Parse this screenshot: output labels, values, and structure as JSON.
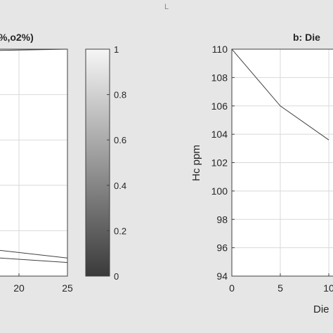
{
  "window": {
    "top_glyph": "L"
  },
  "colorbar": {
    "ticks": [
      {
        "value": 1,
        "label": "1"
      },
      {
        "value": 0.8,
        "label": "0.8"
      },
      {
        "value": 0.6,
        "label": "0.6"
      },
      {
        "value": 0.4,
        "label": "0.4"
      },
      {
        "value": 0.2,
        "label": "0.2"
      },
      {
        "value": 0,
        "label": "0"
      }
    ],
    "gradient_from": "#3a3a3a",
    "gradient_to": "#f6f6f6"
  },
  "colors": {
    "frame_bg": "#e6e6e6",
    "axes_bg": "#ffffff",
    "grid": "#d9d9d9",
    "line": "#404040",
    "text": "#262626"
  },
  "chart_data": [
    {
      "type": "line",
      "title": "%,o2%)",
      "xlim": [
        0,
        25
      ],
      "ylim": [
        0,
        1
      ],
      "xticks": [
        {
          "value": 20,
          "label": "20"
        },
        {
          "value": 25,
          "label": "25"
        }
      ],
      "yticks": [
        0.2,
        0.4,
        0.6,
        0.8
      ],
      "grid": true,
      "series": [
        {
          "x": [
            0,
            25
          ],
          "y": [
            0.98,
            1.0
          ]
        },
        {
          "x": [
            0,
            25
          ],
          "y": [
            0.2,
            0.08
          ]
        },
        {
          "x": [
            0,
            25
          ],
          "y": [
            0.13,
            0.06
          ]
        }
      ]
    },
    {
      "type": "line",
      "title": "b: Die",
      "xlabel": "Die",
      "ylabel": "Hc  ppm",
      "xlim": [
        0,
        10
      ],
      "ylim": [
        94,
        110
      ],
      "xticks": [
        {
          "value": 0,
          "label": "0"
        },
        {
          "value": 5,
          "label": "5"
        },
        {
          "value": 10,
          "label": "10"
        }
      ],
      "yticks": [
        {
          "value": 110,
          "label": "110"
        },
        {
          "value": 108,
          "label": "108"
        },
        {
          "value": 106,
          "label": "106"
        },
        {
          "value": 104,
          "label": "104"
        },
        {
          "value": 102,
          "label": "102"
        },
        {
          "value": 100,
          "label": "100"
        },
        {
          "value": 98,
          "label": "98"
        },
        {
          "value": 96,
          "label": "96"
        },
        {
          "value": 94,
          "label": "94"
        }
      ],
      "grid": true,
      "series": [
        {
          "x": [
            0,
            5,
            10
          ],
          "y": [
            110,
            106,
            103.6
          ]
        }
      ]
    }
  ]
}
